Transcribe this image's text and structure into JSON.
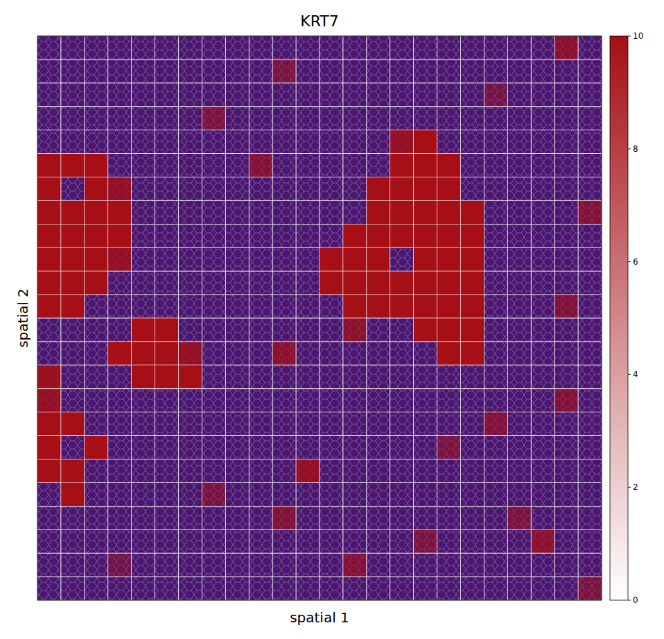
{
  "chart_data": {
    "type": "heatmap",
    "title": "KRT7",
    "x_label": "spatial 1",
    "y_label": "spatial 2",
    "tick_labels": false,
    "color": "#a50f15",
    "values": [
      [
        0,
        0,
        0,
        0,
        0,
        0,
        0,
        0,
        0,
        0,
        0,
        0,
        0,
        0,
        0,
        0,
        0,
        0,
        0,
        0,
        0,
        0,
        7,
        0
      ],
      [
        0,
        0,
        0,
        0,
        0,
        0,
        0,
        0,
        0,
        0,
        5,
        0,
        0,
        0,
        0,
        0,
        0,
        0,
        0,
        0,
        0,
        0,
        0,
        0
      ],
      [
        0,
        0,
        0,
        0,
        0,
        0,
        0,
        0,
        0,
        0,
        0,
        0,
        0,
        0,
        0,
        0,
        0,
        0,
        0,
        4,
        0,
        0,
        0,
        0
      ],
      [
        0,
        0,
        0,
        0,
        0,
        0,
        0,
        5,
        0,
        0,
        0,
        0,
        0,
        0,
        0,
        0,
        0,
        0,
        0,
        0,
        0,
        0,
        0,
        0
      ],
      [
        0,
        0,
        0,
        0,
        0,
        0,
        0,
        0,
        0,
        0,
        0,
        0,
        0,
        0,
        0,
        8,
        10,
        0,
        0,
        0,
        0,
        0,
        0,
        0
      ],
      [
        10,
        10,
        10,
        0,
        0,
        0,
        0,
        0,
        0,
        6,
        0,
        0,
        0,
        0,
        0,
        10,
        10,
        10,
        0,
        0,
        0,
        0,
        0,
        0
      ],
      [
        10,
        0,
        10,
        8,
        0,
        0,
        0,
        0,
        0,
        0,
        0,
        0,
        0,
        0,
        10,
        10,
        10,
        10,
        0,
        0,
        0,
        0,
        0,
        0
      ],
      [
        10,
        10,
        10,
        10,
        0,
        0,
        0,
        0,
        0,
        0,
        0,
        0,
        0,
        0,
        10,
        10,
        10,
        10,
        10,
        0,
        0,
        0,
        0,
        6
      ],
      [
        10,
        10,
        10,
        10,
        0,
        0,
        0,
        0,
        0,
        0,
        0,
        0,
        0,
        10,
        10,
        10,
        10,
        10,
        10,
        0,
        0,
        0,
        0,
        0
      ],
      [
        10,
        10,
        10,
        8,
        0,
        0,
        0,
        0,
        0,
        0,
        0,
        0,
        10,
        10,
        10,
        0,
        10,
        10,
        10,
        0,
        0,
        0,
        0,
        0
      ],
      [
        10,
        10,
        10,
        0,
        0,
        0,
        0,
        0,
        0,
        0,
        0,
        0,
        10,
        10,
        10,
        10,
        10,
        10,
        10,
        0,
        0,
        0,
        0,
        0
      ],
      [
        10,
        10,
        0,
        0,
        0,
        0,
        0,
        0,
        0,
        0,
        0,
        0,
        0,
        10,
        10,
        10,
        10,
        10,
        10,
        0,
        0,
        0,
        6,
        0
      ],
      [
        0,
        0,
        0,
        0,
        10,
        10,
        0,
        0,
        0,
        0,
        0,
        0,
        0,
        7,
        0,
        0,
        10,
        10,
        10,
        0,
        0,
        0,
        0,
        0
      ],
      [
        0,
        0,
        0,
        10,
        10,
        10,
        8,
        0,
        0,
        0,
        7,
        0,
        0,
        0,
        0,
        0,
        0,
        10,
        10,
        0,
        0,
        0,
        0,
        0
      ],
      [
        9,
        0,
        0,
        0,
        10,
        10,
        10,
        0,
        0,
        0,
        0,
        0,
        0,
        0,
        0,
        0,
        0,
        0,
        0,
        0,
        0,
        0,
        0,
        0
      ],
      [
        8,
        0,
        0,
        0,
        0,
        0,
        0,
        0,
        0,
        0,
        0,
        0,
        0,
        0,
        0,
        0,
        0,
        0,
        0,
        0,
        0,
        0,
        6,
        0
      ],
      [
        10,
        10,
        0,
        0,
        0,
        0,
        0,
        0,
        0,
        0,
        0,
        0,
        0,
        0,
        0,
        0,
        0,
        0,
        0,
        6,
        0,
        0,
        0,
        0
      ],
      [
        10,
        0,
        10,
        0,
        0,
        0,
        0,
        0,
        0,
        0,
        0,
        0,
        0,
        0,
        0,
        0,
        0,
        5,
        0,
        0,
        0,
        0,
        0,
        0
      ],
      [
        10,
        10,
        0,
        0,
        0,
        0,
        0,
        0,
        0,
        0,
        0,
        8,
        0,
        0,
        0,
        0,
        0,
        0,
        0,
        0,
        0,
        0,
        0,
        0
      ],
      [
        0,
        10,
        0,
        0,
        0,
        0,
        0,
        5,
        0,
        0,
        0,
        0,
        0,
        0,
        0,
        0,
        0,
        0,
        0,
        0,
        0,
        0,
        0,
        0
      ],
      [
        0,
        0,
        0,
        0,
        0,
        0,
        0,
        0,
        0,
        0,
        6,
        0,
        0,
        0,
        0,
        0,
        0,
        0,
        0,
        0,
        5,
        0,
        0,
        0
      ],
      [
        0,
        0,
        0,
        0,
        0,
        0,
        0,
        0,
        0,
        0,
        0,
        0,
        0,
        0,
        0,
        0,
        5,
        0,
        0,
        0,
        0,
        7,
        0,
        0
      ],
      [
        0,
        0,
        0,
        4,
        0,
        0,
        0,
        0,
        0,
        0,
        0,
        0,
        0,
        6,
        0,
        0,
        0,
        0,
        0,
        0,
        0,
        0,
        0,
        0
      ],
      [
        0,
        0,
        0,
        0,
        0,
        0,
        0,
        0,
        0,
        0,
        0,
        0,
        0,
        0,
        0,
        0,
        0,
        0,
        0,
        0,
        0,
        0,
        0,
        5
      ]
    ],
    "colorbar": {
      "range": [
        0,
        10
      ],
      "ticks": [
        0,
        2,
        4,
        6,
        8,
        10
      ]
    }
  }
}
